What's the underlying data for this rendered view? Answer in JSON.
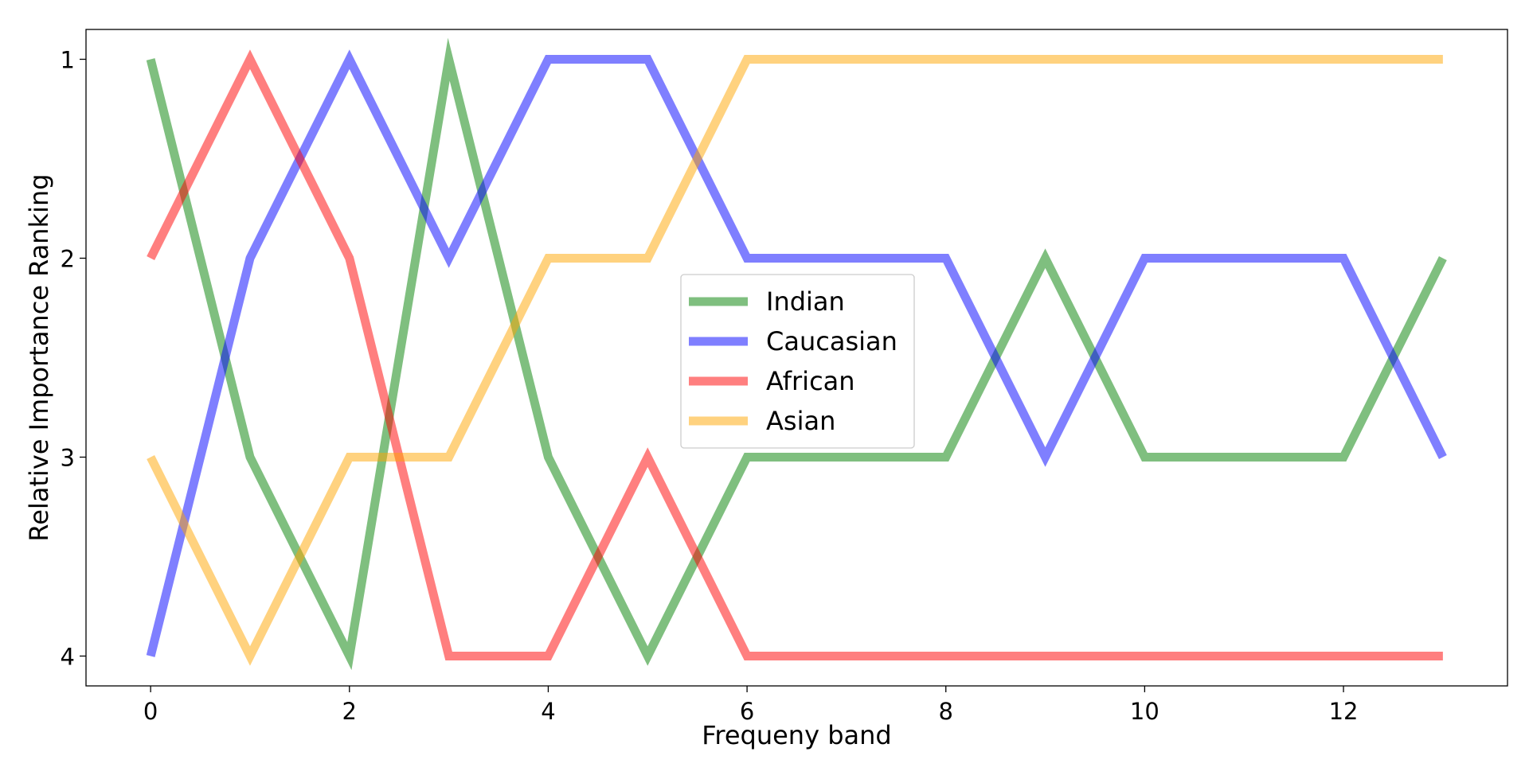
{
  "chart_data": {
    "type": "line",
    "title": "",
    "xlabel": "Frequeny band",
    "ylabel": "Relative Importance Ranking",
    "xlim": [
      -0.65,
      13.65
    ],
    "ylim": [
      4.15,
      0.85
    ],
    "y_inverted": true,
    "xticks": [
      0,
      2,
      4,
      6,
      8,
      10,
      12
    ],
    "yticks": [
      1,
      2,
      3,
      4
    ],
    "grid": false,
    "legend_position": "center",
    "x": [
      0,
      1,
      2,
      3,
      4,
      5,
      6,
      7,
      8,
      9,
      10,
      11,
      12,
      13
    ],
    "series": [
      {
        "name": "Indian",
        "color": "#008000",
        "values": [
          1,
          3,
          4,
          1,
          3,
          4,
          3,
          3,
          3,
          2,
          3,
          3,
          3,
          2
        ]
      },
      {
        "name": "Caucasian",
        "color": "#0000ff",
        "values": [
          4,
          2,
          1,
          2,
          1,
          1,
          2,
          2,
          2,
          3,
          2,
          2,
          2,
          3
        ]
      },
      {
        "name": "African",
        "color": "#ff0000",
        "values": [
          2,
          1,
          2,
          4,
          4,
          3,
          4,
          4,
          4,
          4,
          4,
          4,
          4,
          4
        ]
      },
      {
        "name": "Asian",
        "color": "#ffa500",
        "values": [
          3,
          4,
          3,
          3,
          2,
          2,
          1,
          1,
          1,
          1,
          1,
          1,
          1,
          1
        ]
      }
    ]
  }
}
